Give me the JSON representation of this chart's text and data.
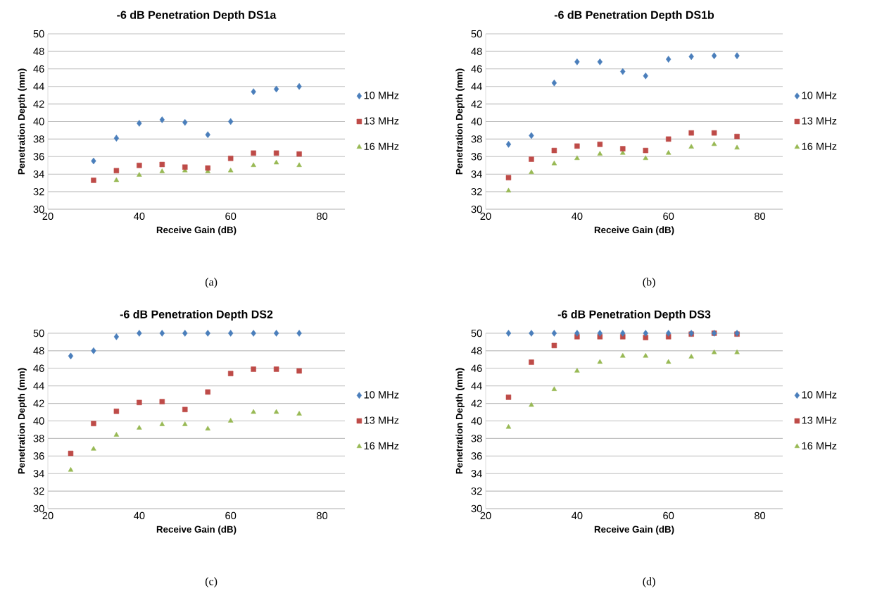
{
  "chart_data": [
    {
      "type": "scatter",
      "title": "-6 dB Penetration Depth DS1a",
      "xlabel": "Receive Gain (dB)",
      "ylabel": "Penetration Depth (mm)",
      "annotations": [
        "(a)"
      ],
      "xlim": [
        20,
        85
      ],
      "xticks": [
        20,
        40,
        60,
        80
      ],
      "ylim": [
        30,
        50
      ],
      "yticks": [
        30,
        32,
        34,
        36,
        38,
        40,
        42,
        44,
        46,
        48,
        50
      ],
      "grid": "y",
      "legend": "right",
      "series": [
        {
          "name": "10 MHz",
          "color": "#4a7ebb",
          "marker": "diamond",
          "x": [
            30,
            35,
            40,
            45,
            50,
            55,
            60,
            65,
            70,
            75
          ],
          "values": [
            35.5,
            38.1,
            39.8,
            40.2,
            39.9,
            38.5,
            40.0,
            43.4,
            43.7,
            44.0
          ]
        },
        {
          "name": "13 MHz",
          "color": "#be4b48",
          "marker": "square",
          "x": [
            30,
            35,
            40,
            45,
            50,
            55,
            60,
            65,
            70,
            75
          ],
          "values": [
            33.3,
            34.4,
            35.0,
            35.1,
            34.8,
            34.7,
            35.8,
            36.4,
            36.4,
            36.3
          ]
        },
        {
          "name": "16 MHz",
          "color": "#98b954",
          "marker": "triangle",
          "x": [
            35,
            40,
            45,
            50,
            55,
            60,
            65,
            70,
            75
          ],
          "values": [
            33.3,
            33.9,
            34.3,
            34.4,
            34.3,
            34.4,
            35.0,
            35.3,
            35.0
          ]
        }
      ]
    },
    {
      "type": "scatter",
      "title": "-6 dB Penetration Depth DS1b",
      "xlabel": "Receive Gain (dB)",
      "ylabel": "Penetration Depth (mm)",
      "annotations": [
        "(b)"
      ],
      "xlim": [
        20,
        85
      ],
      "xticks": [
        20,
        40,
        60,
        80
      ],
      "ylim": [
        30,
        50
      ],
      "yticks": [
        30,
        32,
        34,
        36,
        38,
        40,
        42,
        44,
        46,
        48,
        50
      ],
      "grid": "y",
      "legend": "right",
      "series": [
        {
          "name": "10 MHz",
          "color": "#4a7ebb",
          "marker": "diamond",
          "x": [
            25,
            30,
            35,
            40,
            45,
            50,
            55,
            60,
            65,
            70,
            75
          ],
          "values": [
            37.4,
            38.4,
            44.4,
            46.8,
            46.8,
            45.7,
            45.2,
            47.1,
            47.4,
            47.5,
            47.5
          ]
        },
        {
          "name": "13 MHz",
          "color": "#be4b48",
          "marker": "square",
          "x": [
            25,
            30,
            35,
            40,
            45,
            50,
            55,
            60,
            65,
            70,
            75
          ],
          "values": [
            33.6,
            35.7,
            36.7,
            37.2,
            37.4,
            36.9,
            36.7,
            38.0,
            38.7,
            38.7,
            38.3
          ]
        },
        {
          "name": "16 MHz",
          "color": "#98b954",
          "marker": "triangle",
          "x": [
            25,
            30,
            35,
            40,
            45,
            50,
            55,
            60,
            65,
            70,
            75
          ],
          "values": [
            32.1,
            34.2,
            35.2,
            35.8,
            36.3,
            36.4,
            35.8,
            36.4,
            37.1,
            37.4,
            37.0
          ]
        }
      ]
    },
    {
      "type": "scatter",
      "title": "-6 dB Penetration Depth DS2",
      "xlabel": "Receive Gain (dB)",
      "ylabel": "Penetration Depth (mm)",
      "annotations": [
        "(c)"
      ],
      "xlim": [
        20,
        85
      ],
      "xticks": [
        20,
        40,
        60,
        80
      ],
      "ylim": [
        30,
        50
      ],
      "yticks": [
        30,
        32,
        34,
        36,
        38,
        40,
        42,
        44,
        46,
        48,
        50
      ],
      "grid": "y",
      "legend": "right",
      "series": [
        {
          "name": "10 MHz",
          "color": "#4a7ebb",
          "marker": "diamond",
          "x": [
            25,
            30,
            35,
            40,
            45,
            50,
            55,
            60,
            65,
            70,
            75
          ],
          "values": [
            47.4,
            48.0,
            49.6,
            50,
            50,
            50,
            50,
            50,
            50,
            50,
            50
          ]
        },
        {
          "name": "13 MHz",
          "color": "#be4b48",
          "marker": "square",
          "x": [
            25,
            30,
            35,
            40,
            45,
            50,
            55,
            60,
            65,
            70,
            75
          ],
          "values": [
            36.3,
            39.7,
            41.1,
            42.1,
            42.2,
            41.3,
            43.3,
            45.4,
            45.9,
            45.9,
            45.7
          ]
        },
        {
          "name": "16 MHz",
          "color": "#98b954",
          "marker": "triangle",
          "x": [
            25,
            30,
            35,
            40,
            45,
            50,
            55,
            60,
            65,
            70,
            75
          ],
          "values": [
            34.4,
            36.8,
            38.4,
            39.2,
            39.6,
            39.6,
            39.1,
            40.0,
            41.0,
            41.0,
            40.8
          ]
        }
      ]
    },
    {
      "type": "scatter",
      "title": "-6 dB Penetration Depth DS3",
      "xlabel": "Receive Gain (dB)",
      "ylabel": "Penetration Depth (mm)",
      "annotations": [
        "(d)"
      ],
      "xlim": [
        20,
        85
      ],
      "xticks": [
        20,
        40,
        60,
        80
      ],
      "ylim": [
        30,
        50
      ],
      "yticks": [
        30,
        32,
        34,
        36,
        38,
        40,
        42,
        44,
        46,
        48,
        50
      ],
      "grid": "y",
      "legend": "right",
      "series": [
        {
          "name": "10 MHz",
          "color": "#4a7ebb",
          "marker": "diamond",
          "x": [
            25,
            30,
            35,
            40,
            45,
            50,
            55,
            60,
            65,
            70,
            75
          ],
          "values": [
            50,
            50,
            50,
            50,
            50,
            50,
            50,
            50,
            50,
            50,
            50
          ]
        },
        {
          "name": "13 MHz",
          "color": "#be4b48",
          "marker": "square",
          "x": [
            25,
            30,
            35,
            40,
            45,
            50,
            55,
            60,
            65,
            70,
            75
          ],
          "values": [
            42.7,
            46.7,
            48.6,
            49.6,
            49.6,
            49.6,
            49.5,
            49.6,
            49.9,
            50.0,
            49.9
          ]
        },
        {
          "name": "16 MHz",
          "color": "#98b954",
          "marker": "triangle",
          "x": [
            25,
            30,
            35,
            40,
            45,
            50,
            55,
            60,
            65,
            70,
            75
          ],
          "values": [
            39.3,
            41.8,
            43.6,
            45.7,
            46.7,
            47.4,
            47.4,
            46.7,
            47.3,
            47.8,
            47.8
          ]
        }
      ]
    }
  ]
}
